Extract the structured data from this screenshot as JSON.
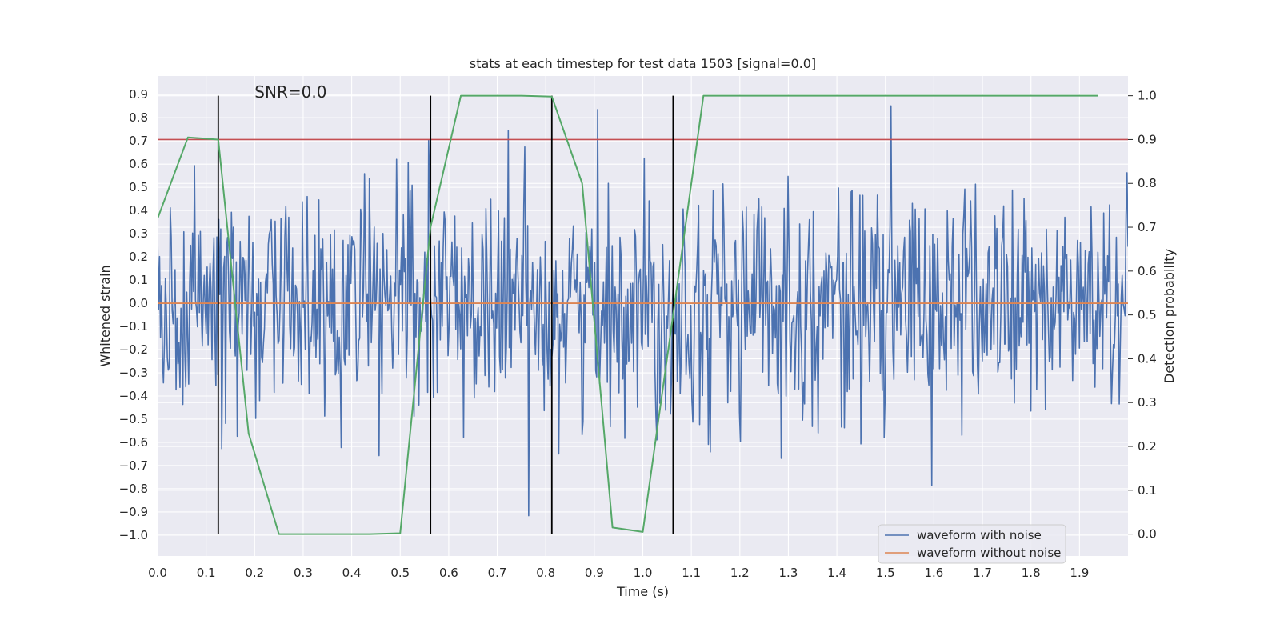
{
  "chart_data": {
    "type": "line",
    "title": "stats at each timestep for test data 1503 [signal=0.0]",
    "xlabel": "Time (s)",
    "ylabel": "Whitened strain",
    "y2label": "Detection probability",
    "xlim": [
      0.0,
      2.0
    ],
    "ylim": [
      -1.09,
      0.98
    ],
    "y2lim": [
      -0.05,
      1.045
    ],
    "xticks": [
      "0.0",
      "0.1",
      "0.2",
      "0.3",
      "0.4",
      "0.5",
      "0.6",
      "0.7",
      "0.8",
      "0.9",
      "1.0",
      "1.1",
      "1.2",
      "1.3",
      "1.4",
      "1.5",
      "1.6",
      "1.7",
      "1.8",
      "1.9"
    ],
    "yticks": [
      "0.9",
      "0.8",
      "0.7",
      "0.6",
      "0.5",
      "0.4",
      "0.3",
      "0.2",
      "0.1",
      "0.0",
      "-0.1",
      "-0.2",
      "-0.3",
      "-0.4",
      "-0.5",
      "-0.6",
      "-0.7",
      "-0.8",
      "-0.9",
      "-1.0"
    ],
    "y2ticks": [
      "1.0",
      "0.9",
      "0.8",
      "0.7",
      "0.6",
      "0.5",
      "0.4",
      "0.3",
      "0.2",
      "0.1",
      "0.0"
    ],
    "annotation": "SNR=0.0",
    "threshold": {
      "value": 0.9,
      "axis": "y2",
      "color": "#c44e52"
    },
    "vlines": [
      0.125,
      0.5625,
      0.8125,
      1.0625
    ],
    "noise_series": {
      "name": "waveform with noise",
      "color": "#4c72b0",
      "sample_count": 1000,
      "seed": 1503,
      "std": 0.25
    },
    "clean_series": {
      "name": "waveform without noise",
      "color": "#dd8452",
      "x": [
        0.0,
        2.0
      ],
      "y": [
        0.0,
        0.0
      ]
    },
    "probability_series": {
      "name": "detection probability",
      "color": "#55a868",
      "x": [
        0.0,
        0.0625,
        0.125,
        0.1875,
        0.25,
        0.3125,
        0.375,
        0.4375,
        0.5,
        0.5625,
        0.625,
        0.6875,
        0.75,
        0.8125,
        0.875,
        0.9375,
        1.0,
        1.0625,
        1.125,
        1.1875,
        1.25,
        1.3125,
        1.375,
        1.4375,
        1.5,
        1.5625,
        1.625,
        1.6875,
        1.75,
        1.8125,
        1.875,
        1.9375
      ],
      "y": [
        0.72,
        0.905,
        0.9,
        0.23,
        0.0,
        0.0,
        0.0,
        0.0,
        0.002,
        0.7,
        1.0,
        1.0,
        1.0,
        0.998,
        0.8,
        0.015,
        0.005,
        0.5,
        1.0,
        1.0,
        1.0,
        1.0,
        1.0,
        1.0,
        1.0,
        1.0,
        1.0,
        1.0,
        1.0,
        1.0,
        1.0,
        1.0
      ]
    },
    "legend": {
      "placement": "lower-right",
      "entries": [
        {
          "label": "waveform with noise",
          "color": "#4c72b0"
        },
        {
          "label": "waveform without noise",
          "color": "#dd8452"
        }
      ]
    }
  }
}
